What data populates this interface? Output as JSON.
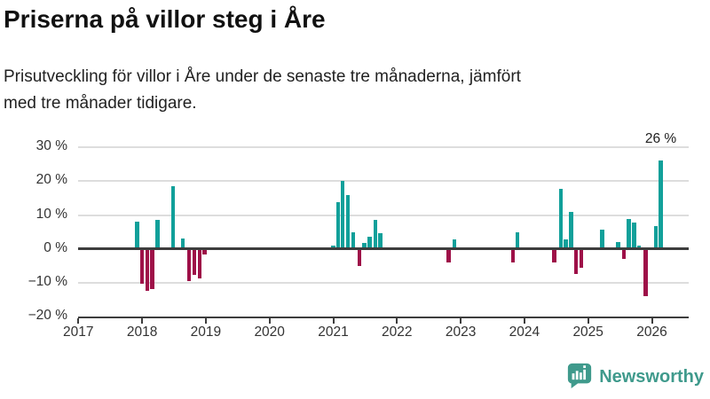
{
  "header": {
    "title": "Priserna på villor steg i Åre",
    "subtitle_lines": [
      "Prisutveckling för villor i Åre under de senaste tre månaderna, jämfört",
      "med tre månader tidigare."
    ]
  },
  "chart_data": {
    "type": "bar",
    "title": "Priserna på villor steg i Åre",
    "subtitle": "Prisutveckling för villor i Åre under de senaste tre månaderna, jämfört med tre månader tidigare.",
    "unit": "%",
    "ylim": [
      -20,
      30
    ],
    "grid": "horizontal",
    "gridline_values": [
      30,
      20,
      10,
      -10
    ],
    "y_ticks": [
      {
        "value": 30,
        "label": "30 %"
      },
      {
        "value": 20,
        "label": "20 %"
      },
      {
        "value": 10,
        "label": "10 %"
      },
      {
        "value": 0,
        "label": "0 %"
      },
      {
        "value": -10,
        "label": "−10 %"
      },
      {
        "value": -20,
        "label": "−20 %"
      }
    ],
    "x_ticks": [
      2017,
      2018,
      2019,
      2020,
      2021,
      2022,
      2023,
      2024,
      2025,
      2026
    ],
    "annotation": {
      "text": "26 %",
      "x": 2026.14,
      "value": 26
    },
    "colors": {
      "positive": "#11A09A",
      "negative": "#9E1048"
    },
    "bars": [
      {
        "x": 2017.92,
        "value": 8.0
      },
      {
        "x": 2018.0,
        "value": -10.4
      },
      {
        "x": 2018.08,
        "value": -12.3
      },
      {
        "x": 2018.16,
        "value": -11.8
      },
      {
        "x": 2018.24,
        "value": 8.6
      },
      {
        "x": 2018.49,
        "value": 18.5
      },
      {
        "x": 2018.64,
        "value": 3.1
      },
      {
        "x": 2018.74,
        "value": -9.4
      },
      {
        "x": 2018.82,
        "value": -7.8
      },
      {
        "x": 2018.9,
        "value": -8.7
      },
      {
        "x": 2018.98,
        "value": -1.7
      },
      {
        "x": 2021.0,
        "value": 1.0
      },
      {
        "x": 2021.08,
        "value": 13.8
      },
      {
        "x": 2021.15,
        "value": 20.0
      },
      {
        "x": 2021.23,
        "value": 16.0
      },
      {
        "x": 2021.31,
        "value": 4.8
      },
      {
        "x": 2021.41,
        "value": -5.0
      },
      {
        "x": 2021.49,
        "value": 1.8
      },
      {
        "x": 2021.57,
        "value": 3.6
      },
      {
        "x": 2021.66,
        "value": 8.5
      },
      {
        "x": 2021.74,
        "value": 4.7
      },
      {
        "x": 2022.81,
        "value": -3.9
      },
      {
        "x": 2022.9,
        "value": 2.8
      },
      {
        "x": 2023.82,
        "value": -3.9
      },
      {
        "x": 2023.89,
        "value": 5.0
      },
      {
        "x": 2024.47,
        "value": -4.1
      },
      {
        "x": 2024.57,
        "value": 17.7
      },
      {
        "x": 2024.65,
        "value": 2.8
      },
      {
        "x": 2024.73,
        "value": 10.8
      },
      {
        "x": 2024.81,
        "value": -7.3
      },
      {
        "x": 2024.89,
        "value": -5.7
      },
      {
        "x": 2025.22,
        "value": 5.8
      },
      {
        "x": 2025.47,
        "value": 1.9
      },
      {
        "x": 2025.56,
        "value": -3.0
      },
      {
        "x": 2025.64,
        "value": 8.7
      },
      {
        "x": 2025.72,
        "value": 7.8
      },
      {
        "x": 2025.8,
        "value": 1.0
      },
      {
        "x": 2025.9,
        "value": -14.0
      },
      {
        "x": 2026.06,
        "value": 6.8
      },
      {
        "x": 2026.14,
        "value": 26.0
      }
    ]
  },
  "footer": {
    "brand": "Newsworthy",
    "brand_color": "#3F9A8C"
  }
}
